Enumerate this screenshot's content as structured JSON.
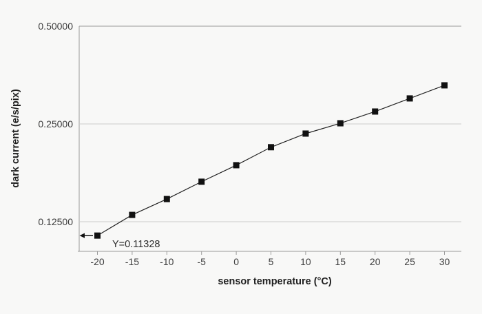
{
  "colors": {
    "background": "#f8f8f7",
    "frame": "#9a9a9a",
    "grid": "#cbcbcb",
    "line": "#222222",
    "marker": "#111111",
    "text": "#3d3d3d"
  },
  "chart_data": {
    "type": "line",
    "title": "",
    "xlabel": "sensor temperature (°C)",
    "ylabel": "dark current (e/s/pix)",
    "x": [
      -20,
      -15,
      -10,
      -5,
      0,
      5,
      10,
      15,
      20,
      25,
      30
    ],
    "values": [
      0.1133,
      0.1312,
      0.1468,
      0.166,
      0.1866,
      0.212,
      0.2335,
      0.2512,
      0.273,
      0.2996,
      0.3287
    ],
    "series_name": "dark current",
    "marker": "square",
    "yscale": "log2",
    "ylim": [
      0.101,
      0.5
    ],
    "xlim": [
      -22.6,
      32.4
    ],
    "yticks": [
      0.5,
      0.25,
      0.125
    ],
    "ytick_labels": [
      "0.50000",
      "0.25000",
      "0.12500"
    ],
    "xticks": [
      -20,
      -15,
      -10,
      -5,
      0,
      5,
      10,
      15,
      20,
      25,
      30
    ],
    "xtick_labels": [
      "-20",
      "-15",
      "-10",
      "-5",
      "0",
      "5",
      "10",
      "15",
      "20",
      "25",
      "30"
    ],
    "grid": "horizontal",
    "legend": "none",
    "annotation": "Y=0.11328",
    "annotation_points_to": {
      "x": -20,
      "y": 0.11328
    }
  }
}
